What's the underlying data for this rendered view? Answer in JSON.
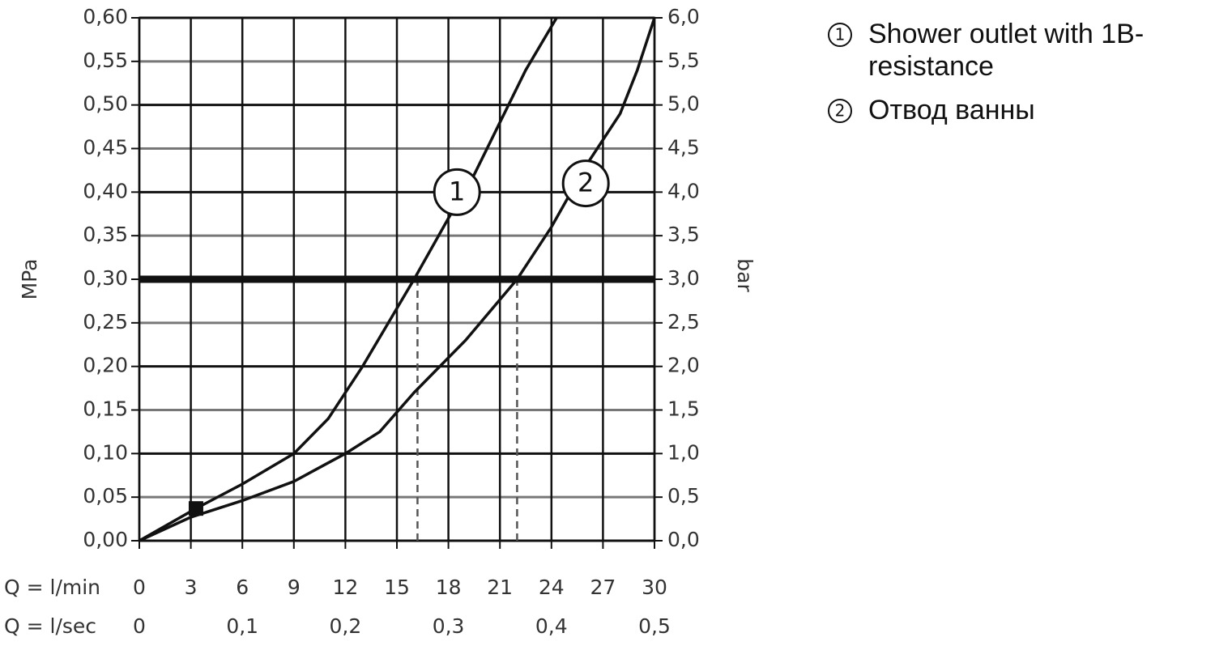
{
  "chart_data": {
    "type": "line",
    "xlabel": "Q = l/min",
    "x2label": "Q = l/sec",
    "ylabel": "MPa",
    "y2label": "bar",
    "xlim": [
      0,
      30
    ],
    "xticks": [
      0,
      3,
      6,
      9,
      12,
      15,
      18,
      21,
      24,
      27,
      30
    ],
    "x2lim": [
      0,
      0.5
    ],
    "x2ticks": [
      0,
      {
        "value": 0.1,
        "label": "0,1"
      },
      {
        "value": 0.2,
        "label": "0,2"
      },
      {
        "value": 0.3,
        "label": "0,3"
      },
      {
        "value": 0.4,
        "label": "0,4"
      },
      {
        "value": 0.5,
        "label": "0,5"
      }
    ],
    "ylim": [
      0,
      0.6
    ],
    "yticks": [
      {
        "value": 0,
        "label": "0,00"
      },
      {
        "value": 0.05,
        "label": "0,05"
      },
      {
        "value": 0.1,
        "label": "0,10"
      },
      {
        "value": 0.15,
        "label": "0,15"
      },
      {
        "value": 0.2,
        "label": "0,20"
      },
      {
        "value": 0.25,
        "label": "0,25"
      },
      {
        "value": 0.3,
        "label": "0,30"
      },
      {
        "value": 0.35,
        "label": "0,35"
      },
      {
        "value": 0.4,
        "label": "0,40"
      },
      {
        "value": 0.45,
        "label": "0,45"
      },
      {
        "value": 0.5,
        "label": "0,50"
      },
      {
        "value": 0.55,
        "label": "0,55"
      },
      {
        "value": 0.6,
        "label": "0,60"
      }
    ],
    "y2lim": [
      0,
      6
    ],
    "y2ticks": [
      {
        "value": 0,
        "label": "0,0"
      },
      {
        "value": 0.5,
        "label": "0,5"
      },
      {
        "value": 1,
        "label": "1,0"
      },
      {
        "value": 1.5,
        "label": "1,5"
      },
      {
        "value": 2,
        "label": "2,0"
      },
      {
        "value": 2.5,
        "label": "2,5"
      },
      {
        "value": 3,
        "label": "3,0"
      },
      {
        "value": 3.5,
        "label": "3,5"
      },
      {
        "value": 4,
        "label": "4,0"
      },
      {
        "value": 4.5,
        "label": "4,5"
      },
      {
        "value": 5,
        "label": "5,0"
      },
      {
        "value": 5.5,
        "label": "5,5"
      },
      {
        "value": 6,
        "label": "6,0"
      }
    ],
    "grid": true,
    "series": [
      {
        "name": "Shower outlet with 1B-resistance",
        "color": "#111111",
        "x": [
          0,
          3.3,
          6,
          9,
          11,
          13,
          14.5,
          16,
          18,
          19.5,
          21,
          22.5,
          24.3
        ],
        "values": [
          0,
          0.037,
          0.065,
          0.1,
          0.14,
          0.2,
          0.25,
          0.3,
          0.37,
          0.42,
          0.48,
          0.54,
          0.6
        ]
      },
      {
        "name": "Отвод ванны",
        "color": "#111111",
        "x": [
          0,
          3,
          6,
          9,
          12,
          14,
          16,
          19,
          22,
          24,
          26,
          28,
          29,
          30
        ],
        "values": [
          0,
          0.027,
          0.046,
          0.068,
          0.1,
          0.125,
          0.17,
          0.23,
          0.3,
          0.36,
          0.43,
          0.49,
          0.54,
          0.6
        ]
      }
    ],
    "annotations": [
      {
        "text": "1",
        "x": 18.5,
        "y": 0.4
      },
      {
        "text": "2",
        "x": 26,
        "y": 0.41
      }
    ],
    "hline": 0.3,
    "vlines": [
      16.2,
      22
    ],
    "marker": {
      "x": 3.3,
      "y": 0.037
    }
  }
}
